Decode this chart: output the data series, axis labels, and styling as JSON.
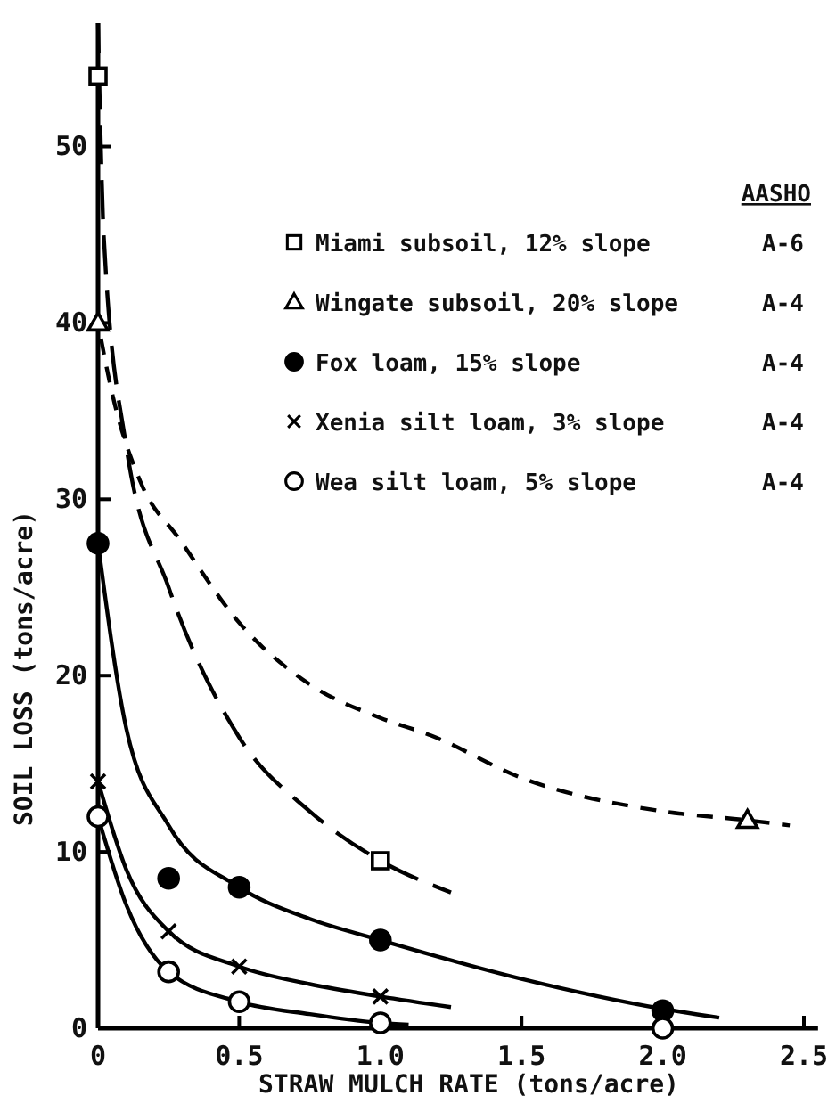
{
  "chart_data": {
    "type": "line",
    "xlabel": "STRAW MULCH RATE  (tons/acre)",
    "ylabel": "SOIL LOSS  (tons/acre)",
    "legend_title": "AASHO",
    "annotations": [
      "A-6",
      "A-4",
      "A-4",
      "A-4",
      "A-4"
    ],
    "xlim": [
      0,
      2.55
    ],
    "xticks": [
      0,
      0.5,
      {
        "value": 1,
        "label": "1.0"
      },
      1.5,
      {
        "value": 2,
        "label": "2.0"
      },
      2.5
    ],
    "ylim": [
      0,
      57
    ],
    "yticks": [
      0,
      10,
      20,
      30,
      40,
      50
    ],
    "grid": false,
    "legend": "top right",
    "series": [
      {
        "name": "Miami subsoil, 12% slope",
        "type": "scatter",
        "marker": "square",
        "color": "#ffffff",
        "x": [
          0,
          1.0
        ],
        "values": [
          54,
          9.5
        ]
      },
      {
        "name": "Wingate subsoil, 20% slope",
        "type": "scatter",
        "marker": "triangle",
        "color": "#ffffff",
        "x": [
          0,
          2.3
        ],
        "values": [
          40,
          11.8
        ]
      },
      {
        "name": "Fox loam, 15% slope",
        "type": "scatter",
        "marker": "circle",
        "color": "#000000",
        "x": [
          0,
          0.25,
          0.5,
          1.0,
          2.0
        ],
        "values": [
          27.5,
          8.5,
          8,
          5,
          1
        ]
      },
      {
        "name": "Xenia silt loam, 3% slope",
        "type": "scatter",
        "marker": "cross",
        "color": "#000000",
        "x": [
          0,
          0.25,
          0.5,
          1.0
        ],
        "values": [
          14,
          5.5,
          3.5,
          1.8
        ]
      },
      {
        "name": "Wea silt loam, 5% slope",
        "type": "scatter",
        "marker": "circle",
        "color": "#ffffff",
        "x": [
          0,
          0.25,
          0.5,
          1.0,
          2.0
        ],
        "values": [
          12,
          3.2,
          1.5,
          0.3,
          0
        ]
      },
      {
        "line_style": "dashed",
        "color": "#000000",
        "x": [
          0,
          0.01,
          0.02,
          0.1,
          0.25,
          0.5,
          0.75,
          1.0,
          1.25
        ],
        "values": [
          57,
          50,
          45,
          33,
          25,
          16.5,
          12.3,
          9.5,
          7.7
        ]
      },
      {
        "line_style": "dotted",
        "color": "#000000",
        "x": [
          0,
          0.05,
          0.15,
          0.29,
          0.5,
          0.75,
          1.0,
          1.18,
          1.5,
          2.0,
          2.3,
          2.45
        ],
        "values": [
          40,
          36,
          31,
          27.7,
          23,
          19.5,
          17.6,
          16.6,
          14.2,
          12.3,
          11.8,
          11.5
        ]
      },
      {
        "line_style": "solid",
        "color": "#000000",
        "x": [
          0,
          0.1,
          0.25,
          0.5,
          0.75,
          1.0,
          1.5,
          2.0,
          2.2
        ],
        "values": [
          27.5,
          17,
          11.5,
          8,
          6.2,
          5,
          2.8,
          1.1,
          0.6
        ]
      },
      {
        "line_style": "solid",
        "color": "#000000",
        "x": [
          0,
          0.1,
          0.25,
          0.5,
          0.75,
          1.0,
          1.25
        ],
        "values": [
          14,
          9,
          5.5,
          3.5,
          2.5,
          1.8,
          1.2
        ]
      },
      {
        "line_style": "solid",
        "color": "#000000",
        "x": [
          0,
          0.1,
          0.25,
          0.5,
          0.75,
          1.0,
          1.1
        ],
        "values": [
          12,
          7,
          3.2,
          1.5,
          0.8,
          0.3,
          0.2
        ]
      }
    ]
  }
}
